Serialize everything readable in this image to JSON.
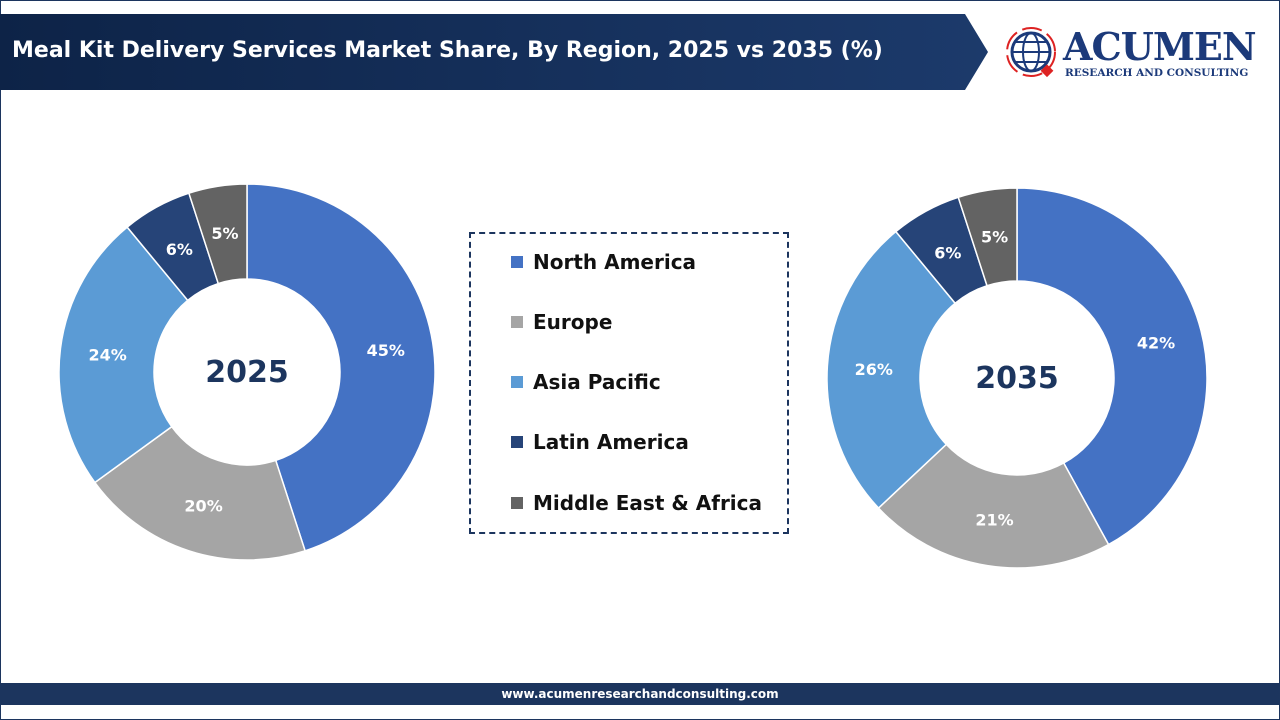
{
  "header": {
    "title": "Meal Kit Delivery Services Market Share, By Region, 2025 vs 2035 (%)"
  },
  "logo": {
    "name": "ACUMEN",
    "tagline": "RESEARCH AND CONSULTING"
  },
  "footer": {
    "url": "www.acumenresearchandconsulting.com"
  },
  "legend": [
    {
      "label": "North America",
      "color": "#4472C4"
    },
    {
      "label": "Europe",
      "color": "#A5A5A5"
    },
    {
      "label": "Asia Pacific",
      "color": "#5B9BD5"
    },
    {
      "label": "Latin America",
      "color": "#264478"
    },
    {
      "label": "Middle East & Africa",
      "color": "#636363"
    }
  ],
  "chart_data": [
    {
      "type": "pie",
      "donut": true,
      "center_label": "2025",
      "categories": [
        "North America",
        "Europe",
        "Asia Pacific",
        "Latin America",
        "Middle East & Africa"
      ],
      "values": [
        45,
        20,
        24,
        6,
        5
      ],
      "data_labels": [
        "45%",
        "20%",
        "24%",
        "6%",
        "5%"
      ]
    },
    {
      "type": "pie",
      "donut": true,
      "center_label": "2035",
      "categories": [
        "North America",
        "Europe",
        "Asia Pacific",
        "Latin America",
        "Middle East & Africa"
      ],
      "values": [
        42,
        21,
        26,
        6,
        5
      ],
      "data_labels": [
        "42%",
        "21%",
        "26%",
        "6%",
        "5%"
      ]
    }
  ]
}
